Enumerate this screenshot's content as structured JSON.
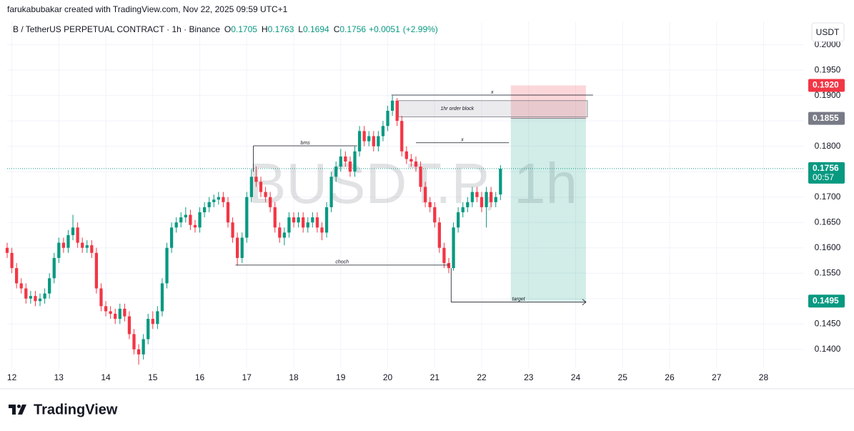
{
  "header": {
    "credit": "farukabubakar created with TradingView.com, Nov 22, 2025 09:59 UTC+1"
  },
  "chart_data": {
    "type": "candlestick",
    "symbol": "B / TetherUS PERPETUAL CONTRACT · 1h · Binance",
    "legend": {
      "o_label": "O",
      "o": 0.1705,
      "h_label": "H",
      "h": 0.1763,
      "l_label": "L",
      "l": 0.1694,
      "c_label": "C",
      "c": 0.1756,
      "change": "+0.0051",
      "change_pct": "(+2.99%)"
    },
    "currency": "USDT",
    "watermark": "BUSDT.P, 1h",
    "up_color": "#089981",
    "down_color": "#f23645",
    "x": [
      11.9,
      12,
      12.1,
      12.2,
      12.3,
      12.4,
      12.5,
      12.6,
      12.7,
      12.8,
      12.9,
      13,
      13.1,
      13.2,
      13.3,
      13.4,
      13.5,
      13.6,
      13.7,
      13.8,
      13.9,
      14,
      14.1,
      14.2,
      14.3,
      14.4,
      14.5,
      14.6,
      14.7,
      14.8,
      14.9,
      15,
      15.1,
      15.2,
      15.3,
      15.4,
      15.5,
      15.6,
      15.7,
      15.8,
      15.9,
      16,
      16.1,
      16.2,
      16.3,
      16.4,
      16.5,
      16.6,
      16.7,
      16.8,
      16.9,
      17,
      17.1,
      17.2,
      17.3,
      17.4,
      17.5,
      17.6,
      17.7,
      17.8,
      17.9,
      18,
      18.1,
      18.2,
      18.3,
      18.4,
      18.5,
      18.6,
      18.7,
      18.8,
      18.9,
      19,
      19.1,
      19.2,
      19.3,
      19.4,
      19.5,
      19.6,
      19.7,
      19.8,
      19.9,
      20,
      20.1,
      20.2,
      20.3,
      20.4,
      20.5,
      20.6,
      20.7,
      20.8,
      20.9,
      21,
      21.1,
      21.2,
      21.3,
      21.4,
      21.5,
      21.6,
      21.7,
      21.8,
      21.9,
      22,
      22.1,
      22.2,
      22.3,
      22.4
    ],
    "open": [
      0.16,
      0.159,
      0.156,
      0.153,
      0.152,
      0.15,
      0.1505,
      0.1495,
      0.15,
      0.151,
      0.154,
      0.158,
      0.161,
      0.16,
      0.1625,
      0.164,
      0.161,
      0.16,
      0.1605,
      0.159,
      0.152,
      0.1485,
      0.1475,
      0.147,
      0.146,
      0.148,
      0.1465,
      0.143,
      0.14,
      0.139,
      0.142,
      0.146,
      0.145,
      0.1475,
      0.153,
      0.16,
      0.164,
      0.165,
      0.166,
      0.1665,
      0.1645,
      0.164,
      0.167,
      0.168,
      0.169,
      0.1695,
      0.17,
      0.169,
      0.165,
      0.162,
      0.158,
      0.162,
      0.17,
      0.174,
      0.173,
      0.171,
      0.17,
      0.168,
      0.164,
      0.162,
      0.163,
      0.166,
      0.165,
      0.166,
      0.164,
      0.165,
      0.166,
      0.164,
      0.163,
      0.168,
      0.174,
      0.176,
      0.178,
      0.177,
      0.175,
      0.179,
      0.183,
      0.181,
      0.182,
      0.18,
      0.182,
      0.184,
      0.187,
      0.189,
      0.185,
      0.179,
      0.1775,
      0.177,
      0.176,
      0.172,
      0.169,
      0.168,
      0.165,
      0.16,
      0.157,
      0.156,
      0.164,
      0.167,
      0.168,
      0.169,
      0.171,
      0.17,
      0.168,
      0.171,
      0.169,
      0.1705
    ],
    "high": [
      0.161,
      0.16,
      0.157,
      0.154,
      0.153,
      0.1515,
      0.1515,
      0.151,
      0.152,
      0.155,
      0.159,
      0.162,
      0.162,
      0.1635,
      0.1665,
      0.165,
      0.162,
      0.1615,
      0.1615,
      0.16,
      0.153,
      0.1495,
      0.1485,
      0.148,
      0.149,
      0.149,
      0.1475,
      0.144,
      0.141,
      0.143,
      0.147,
      0.1475,
      0.1485,
      0.154,
      0.161,
      0.165,
      0.166,
      0.167,
      0.168,
      0.1675,
      0.1655,
      0.168,
      0.169,
      0.17,
      0.1705,
      0.171,
      0.171,
      0.17,
      0.166,
      0.163,
      0.163,
      0.171,
      0.1755,
      0.176,
      0.174,
      0.172,
      0.171,
      0.169,
      0.165,
      0.164,
      0.167,
      0.167,
      0.167,
      0.167,
      0.166,
      0.167,
      0.167,
      0.165,
      0.169,
      0.175,
      0.177,
      0.1795,
      0.179,
      0.178,
      0.18,
      0.184,
      0.184,
      0.183,
      0.183,
      0.183,
      0.185,
      0.188,
      0.19,
      0.1895,
      0.186,
      0.18,
      0.1785,
      0.178,
      0.177,
      0.173,
      0.17,
      0.169,
      0.166,
      0.161,
      0.158,
      0.165,
      0.168,
      0.169,
      0.17,
      0.172,
      0.172,
      0.171,
      0.172,
      0.172,
      0.171,
      0.1763
    ],
    "low": [
      0.158,
      0.155,
      0.152,
      0.151,
      0.149,
      0.149,
      0.1485,
      0.1485,
      0.149,
      0.15,
      0.153,
      0.157,
      0.159,
      0.159,
      0.1615,
      0.16,
      0.159,
      0.159,
      0.158,
      0.151,
      0.1475,
      0.1465,
      0.146,
      0.145,
      0.145,
      0.1455,
      0.142,
      0.139,
      0.137,
      0.138,
      0.141,
      0.144,
      0.144,
      0.1465,
      0.152,
      0.159,
      0.163,
      0.164,
      0.165,
      0.1635,
      0.163,
      0.163,
      0.166,
      0.167,
      0.168,
      0.1685,
      0.168,
      0.164,
      0.161,
      0.1565,
      0.157,
      0.161,
      0.169,
      0.172,
      0.17,
      0.169,
      0.167,
      0.163,
      0.161,
      0.1605,
      0.162,
      0.164,
      0.164,
      0.163,
      0.163,
      0.164,
      0.163,
      0.1615,
      0.162,
      0.167,
      0.173,
      0.175,
      0.176,
      0.174,
      0.174,
      0.178,
      0.18,
      0.18,
      0.179,
      0.179,
      0.181,
      0.183,
      0.186,
      0.184,
      0.178,
      0.1765,
      0.176,
      0.175,
      0.171,
      0.168,
      0.167,
      0.164,
      0.159,
      0.156,
      0.155,
      0.1555,
      0.163,
      0.166,
      0.167,
      0.168,
      0.169,
      0.167,
      0.164,
      0.168,
      0.168,
      0.1694
    ],
    "close": [
      0.159,
      0.156,
      0.153,
      0.152,
      0.15,
      0.1505,
      0.1495,
      0.15,
      0.151,
      0.154,
      0.158,
      0.161,
      0.16,
      0.1625,
      0.164,
      0.161,
      0.16,
      0.1605,
      0.159,
      0.152,
      0.1485,
      0.1475,
      0.147,
      0.146,
      0.148,
      0.1465,
      0.143,
      0.14,
      0.139,
      0.142,
      0.146,
      0.145,
      0.1475,
      0.153,
      0.16,
      0.164,
      0.165,
      0.166,
      0.1665,
      0.1645,
      0.164,
      0.167,
      0.168,
      0.169,
      0.1695,
      0.17,
      0.169,
      0.165,
      0.162,
      0.158,
      0.162,
      0.17,
      0.174,
      0.173,
      0.171,
      0.17,
      0.168,
      0.164,
      0.162,
      0.163,
      0.166,
      0.165,
      0.166,
      0.164,
      0.165,
      0.166,
      0.164,
      0.163,
      0.168,
      0.174,
      0.176,
      0.178,
      0.177,
      0.175,
      0.179,
      0.183,
      0.181,
      0.182,
      0.18,
      0.182,
      0.184,
      0.187,
      0.189,
      0.185,
      0.179,
      0.1775,
      0.177,
      0.176,
      0.172,
      0.169,
      0.168,
      0.165,
      0.16,
      0.157,
      0.156,
      0.164,
      0.167,
      0.168,
      0.169,
      0.171,
      0.17,
      0.168,
      0.171,
      0.169,
      0.17,
      0.1756
    ],
    "xlim": [
      11.9,
      28.86
    ],
    "xticks": [
      12,
      13,
      14,
      15,
      16,
      17,
      18,
      19,
      20,
      21,
      22,
      23,
      24,
      25,
      26,
      27,
      28
    ],
    "ylim": [
      0.1363,
      0.2046
    ],
    "yticks": [
      {
        "value": 0.14,
        "label": "0.1400"
      },
      {
        "value": 0.145,
        "label": "0.1450"
      },
      {
        "value": 0.15,
        "label": "0.1500"
      },
      {
        "value": 0.155,
        "label": "0.1550"
      },
      {
        "value": 0.16,
        "label": "0.1600"
      },
      {
        "value": 0.165,
        "label": "0.1650"
      },
      {
        "value": 0.17,
        "label": "0.1700"
      },
      {
        "value": 0.175,
        "label": "0.1750"
      },
      {
        "value": 0.18,
        "label": "0.1800"
      },
      {
        "value": 0.185,
        "label": "0.1850"
      },
      {
        "value": 0.19,
        "label": "0.1900"
      },
      {
        "value": 0.195,
        "label": "0.1950"
      },
      {
        "value": 0.2,
        "label": "0.2000"
      }
    ],
    "grid": true,
    "last_price": 0.1756,
    "countdown": "00:57",
    "annotations": [
      {
        "label": "bms",
        "price": 0.1801,
        "anchor_price": 0.175,
        "x_start": 17.14,
        "x_end": 19.35
      },
      {
        "label": "choch",
        "price": 0.1566,
        "x_start": 16.76,
        "x_end": 21.3
      },
      {
        "label": "x",
        "price": 0.1901,
        "x_start": 20.08,
        "x_end": 24.37
      },
      {
        "label": "x",
        "price": 0.1807,
        "x_start": 20.6,
        "x_end": 22.58
      },
      {
        "label": "target",
        "price": 0.1493,
        "anchor_price": 0.156,
        "x_start": 21.35,
        "x_end": 24.22
      }
    ],
    "order_block": {
      "label": "1hr order block",
      "top": 0.189,
      "bottom": 0.1858,
      "x_start": 20.23,
      "x_end": 24.25
    },
    "position": {
      "x_start": 22.62,
      "x_end": 24.22,
      "stop": {
        "value": 0.192,
        "label": "0.1920"
      },
      "entry": 0.1855,
      "target": 0.1495
    }
  },
  "footer": {
    "brand": "TradingView"
  }
}
